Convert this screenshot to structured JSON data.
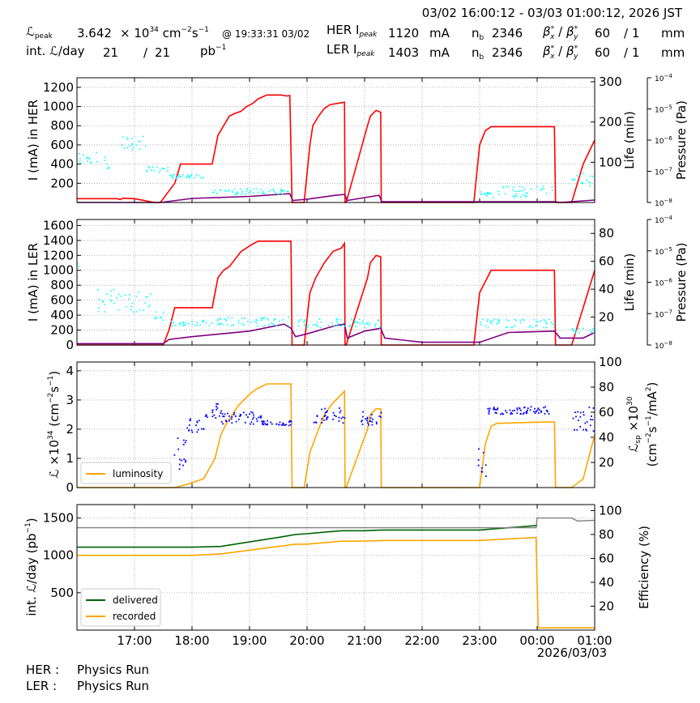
{
  "header": {
    "time_range": "03/02 16:00:12 - 03/03 01:00:12, 2026 JST",
    "lpeak_label": "ℒ",
    "lpeak_sub": "peak",
    "lpeak_value": "3.642",
    "lpeak_unit_pre": "× 10",
    "lpeak_unit_exp": "34",
    "lpeak_unit_post": " cm",
    "lpeak_unit_exp2": "−2",
    "lpeak_unit_s": "s",
    "lpeak_unit_exp3": "−1",
    "lpeak_time": "@ 19:33:31 03/02",
    "intl_label": "int. ℒ/day",
    "intl_value": "21",
    "intl_sep": "/",
    "intl_value2": "21",
    "intl_unit": "pb",
    "intl_unit_exp": "−1",
    "her_label": "HER I",
    "her_sub": "peak",
    "her_value": "1120",
    "her_unit": "mA",
    "ler_label": "LER I",
    "ler_sub": "peak",
    "ler_value": "1403",
    "ler_unit": "mA",
    "nb_label": "n",
    "nb_sub": "b",
    "nb_her": "2346",
    "nb_ler": "2346",
    "beta_x": "β",
    "beta_x_sup": "*",
    "beta_x_sub": "x",
    "beta_sep": " / ",
    "beta_y": "β",
    "beta_y_sup": "*",
    "beta_y_sub": "y",
    "beta_her_x": "60",
    "beta_her_y": "/ 1",
    "beta_ler_x": "60",
    "beta_ler_y": "/ 1",
    "beta_unit": "mm"
  },
  "footer": {
    "her_status_label": "HER :",
    "her_status": "Physics Run",
    "ler_status_label": "LER :",
    "ler_status": "Physics Run"
  },
  "colors": {
    "current": "#ff0000",
    "lifetime": "#800080",
    "pressure": "#00ffff",
    "luminosity": "#ffa500",
    "specific": "#0000ff",
    "delivered": "#006400",
    "recorded": "#ffa500",
    "efficiency": "#808080",
    "grid": "#a0a0a0"
  },
  "x_axis": {
    "ticks": [
      "17:00",
      "18:00",
      "19:00",
      "20:00",
      "21:00",
      "22:00",
      "23:00",
      "00:00",
      "01:00"
    ],
    "tick_hours": [
      1,
      2,
      3,
      4,
      5,
      6,
      7,
      8,
      9
    ],
    "date_label": "2026/03/03",
    "range_hours": [
      0,
      9
    ]
  },
  "chart_data": [
    {
      "type": "line",
      "panel": "her",
      "ylabel": "I (mA) in HER",
      "ylim": [
        0,
        1300
      ],
      "yticks": [
        200,
        400,
        600,
        800,
        1000,
        1200
      ],
      "y2label": "Life (min)",
      "y2lim": [
        0,
        310
      ],
      "y2ticks": [
        100,
        200,
        300
      ],
      "y3label": "Pressure (Pa)",
      "y3ticks": [
        "10",
        "10",
        "10",
        "10",
        "10"
      ],
      "y3exps": [
        "−4",
        "−5",
        "−6",
        "−7",
        "−8"
      ],
      "grid": true,
      "series": [
        {
          "role": "current",
          "x": [
            0,
            0.7,
            0.75,
            0.8,
            1.0,
            1.35,
            1.45,
            1.7,
            1.8,
            2.35,
            2.45,
            2.55,
            2.65,
            2.75,
            2.85,
            2.95,
            3.05,
            3.15,
            3.3,
            3.55,
            3.65,
            3.7,
            3.74,
            3.95,
            4.05,
            4.1,
            4.2,
            4.3,
            4.4,
            4.6,
            4.65,
            4.66,
            4.68,
            5.05,
            5.1,
            5.2,
            5.28,
            5.29,
            5.3,
            6.0,
            6.9,
            7.0,
            7.1,
            7.2,
            7.3,
            8.3,
            8.32,
            8.35,
            8.6,
            8.8,
            9.0
          ],
          "y": [
            40,
            40,
            30,
            45,
            40,
            0,
            0,
            200,
            400,
            400,
            700,
            800,
            900,
            930,
            950,
            1000,
            1030,
            1080,
            1120,
            1120,
            1110,
            1115,
            0,
            0,
            600,
            800,
            900,
            980,
            1020,
            1040,
            1045,
            0,
            0,
            800,
            900,
            960,
            940,
            0,
            0,
            0,
            0,
            600,
            750,
            790,
            790,
            790,
            0,
            0,
            0,
            400,
            650
          ]
        },
        {
          "role": "lifetime",
          "x": [
            0,
            1.3,
            1.45,
            2.0,
            3.0,
            3.7,
            3.75,
            4.0,
            4.5,
            4.65,
            4.7,
            5.0,
            5.25,
            5.3,
            6.0,
            7.0,
            7.8,
            8.3,
            8.4,
            9.0
          ],
          "y": [
            0,
            0,
            0,
            10,
            15,
            22,
            5,
            8,
            18,
            20,
            5,
            12,
            18,
            2,
            2,
            2,
            2,
            2,
            0,
            6
          ]
        }
      ]
    },
    {
      "type": "line",
      "panel": "ler",
      "ylabel": "I (mA) in LER",
      "ylim": [
        0,
        1680
      ],
      "yticks": [
        0,
        200,
        400,
        600,
        800,
        1000,
        1200,
        1400,
        1600
      ],
      "y2label": "Life (min)",
      "y2lim": [
        0,
        90
      ],
      "y2ticks": [
        20,
        40,
        60,
        80
      ],
      "y3label": "Pressure (Pa)",
      "y3ticks": [
        "10",
        "10",
        "10",
        "10",
        "10"
      ],
      "y3exps": [
        "−4",
        "−5",
        "−6",
        "−7",
        "−8"
      ],
      "grid": true,
      "series": [
        {
          "role": "current",
          "x": [
            0,
            1.5,
            1.6,
            1.7,
            2.35,
            2.45,
            2.55,
            2.65,
            2.75,
            2.85,
            2.95,
            3.05,
            3.15,
            3.3,
            3.55,
            3.65,
            3.72,
            3.74,
            3.95,
            4.05,
            4.15,
            4.3,
            4.45,
            4.6,
            4.65,
            4.66,
            4.68,
            5.05,
            5.1,
            5.2,
            5.28,
            5.29,
            5.3,
            6.9,
            7.0,
            7.1,
            7.2,
            7.3,
            8.3,
            8.32,
            8.35,
            8.6,
            8.8,
            9.0
          ],
          "y": [
            0,
            0,
            200,
            500,
            500,
            900,
            1000,
            1050,
            1150,
            1250,
            1300,
            1350,
            1390,
            1390,
            1390,
            1390,
            1390,
            0,
            0,
            700,
            900,
            1100,
            1250,
            1300,
            1360,
            0,
            0,
            900,
            1100,
            1200,
            1180,
            0,
            0,
            0,
            700,
            850,
            1000,
            1000,
            1000,
            0,
            0,
            0,
            500,
            1000
          ]
        },
        {
          "role": "lifetime",
          "x": [
            0,
            1.5,
            1.6,
            2.0,
            3.0,
            3.6,
            3.72,
            3.8,
            4.0,
            4.5,
            4.65,
            4.7,
            5.0,
            5.28,
            5.35,
            6.0,
            7.0,
            7.5,
            8.3,
            8.4,
            8.8,
            9.0
          ],
          "y": [
            1,
            1,
            4,
            6,
            10,
            15,
            12,
            6,
            8,
            14,
            15,
            5,
            10,
            12,
            5,
            2,
            2,
            9,
            10,
            5,
            5,
            9
          ]
        }
      ]
    },
    {
      "type": "line",
      "panel": "lumi",
      "ylabel": "ℒ ×10",
      "ylim": [
        0,
        4.3
      ],
      "yticks": [
        0,
        1,
        2,
        3,
        4
      ],
      "y2ticks": [
        20,
        40,
        60,
        80,
        100
      ],
      "y2lim": [
        0,
        100
      ],
      "legend": "lower-left",
      "grid": true,
      "series": [
        {
          "name": "luminosity",
          "role": "luminosity",
          "x": [
            0,
            1.7,
            1.9,
            2.2,
            2.4,
            2.5,
            2.6,
            2.7,
            2.8,
            2.9,
            3.0,
            3.1,
            3.2,
            3.3,
            3.5,
            3.7,
            3.72,
            3.74,
            3.95,
            4.05,
            4.2,
            4.3,
            4.45,
            4.6,
            4.65,
            4.66,
            4.68,
            5.05,
            5.1,
            5.2,
            5.28,
            5.29,
            5.3,
            7.0,
            7.1,
            7.2,
            7.3,
            8.2,
            8.3,
            8.32,
            8.35,
            8.6,
            8.8,
            9.0
          ],
          "y": [
            0,
            0,
            0.1,
            0.3,
            1.0,
            1.8,
            2.2,
            2.5,
            2.8,
            3.0,
            3.2,
            3.35,
            3.45,
            3.55,
            3.55,
            3.55,
            3.55,
            0,
            0,
            1.2,
            2.0,
            2.5,
            2.9,
            3.2,
            3.3,
            0,
            0,
            2.0,
            2.5,
            2.7,
            2.7,
            0,
            0,
            0,
            1.5,
            2.1,
            2.2,
            2.25,
            2.25,
            0,
            0,
            0,
            0.3,
            1.8
          ]
        }
      ]
    },
    {
      "type": "line",
      "panel": "intl",
      "ylabel": "int. ℒ/day (pb",
      "ylim": [
        0,
        1680
      ],
      "yticks": [
        500,
        1000,
        1500
      ],
      "y2label": "Efficiency (%)",
      "y2lim": [
        0,
        105
      ],
      "y2ticks": [
        20,
        40,
        60,
        80,
        100
      ],
      "legend": "lower-left",
      "grid": true,
      "series": [
        {
          "name": "delivered",
          "role": "delivered",
          "x": [
            0,
            2.0,
            2.5,
            3.0,
            3.5,
            3.8,
            4.0,
            4.3,
            4.6,
            5.0,
            5.3,
            6.0,
            7.0,
            7.5,
            8.0
          ],
          "y": [
            1110,
            1110,
            1120,
            1180,
            1240,
            1280,
            1290,
            1310,
            1330,
            1330,
            1340,
            1340,
            1340,
            1370,
            1400
          ]
        },
        {
          "name": "recorded",
          "role": "recorded",
          "x": [
            0,
            2.0,
            2.5,
            3.0,
            3.5,
            3.8,
            4.0,
            4.3,
            4.6,
            5.0,
            5.3,
            6.0,
            7.0,
            7.5,
            7.98,
            8.0,
            8.02,
            9.0
          ],
          "y": [
            1000,
            1000,
            1020,
            1070,
            1120,
            1150,
            1150,
            1170,
            1190,
            1190,
            1200,
            1200,
            1200,
            1220,
            1240,
            600,
            30,
            30
          ]
        },
        {
          "role": "efficiency",
          "x": [
            0,
            7.98,
            8.0,
            8.6,
            8.7,
            9.0
          ],
          "y": [
            1370,
            1370,
            1500,
            1500,
            1460,
            1470
          ]
        }
      ]
    }
  ]
}
